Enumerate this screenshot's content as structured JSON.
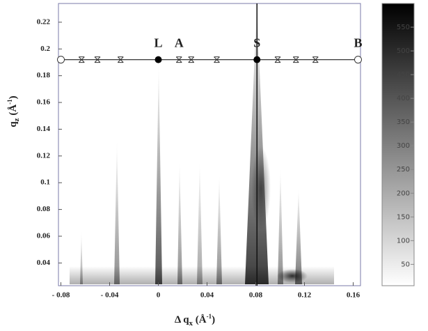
{
  "chart_data": {
    "type": "scatter",
    "xlabel": [
      "Δ q",
      "x",
      " (Å",
      "-1",
      ")"
    ],
    "ylabel": [
      "q",
      "z",
      " (Å",
      "-1",
      ")"
    ],
    "xlim": [
      -0.082,
      0.166
    ],
    "ylim": [
      0.023,
      0.234
    ],
    "xticks": [
      {
        "value": -0.08,
        "label": "- 0.08"
      },
      {
        "value": -0.04,
        "label": "- 0.04"
      },
      0,
      0.04,
      0.08,
      0.12,
      0.16
    ],
    "yticks": [
      0.04,
      0.06,
      0.08,
      0.1,
      0.12,
      0.14,
      0.16,
      0.18,
      0.2,
      0.22
    ],
    "hline": 0.192,
    "vline": 0.081,
    "series": [
      {
        "marker": "circle-open",
        "color": "#333333",
        "x": [
          -0.08,
          0.164
        ],
        "y": [
          0.192,
          0.192
        ]
      },
      {
        "marker": "cross",
        "color": "#333333",
        "x": [
          -0.063,
          -0.05,
          -0.031,
          0.017,
          0.027,
          0.048,
          0.098,
          0.113,
          0.129
        ],
        "y": [
          0.192,
          0.192,
          0.192,
          0.192,
          0.192,
          0.192,
          0.192,
          0.192,
          0.192
        ]
      },
      {
        "marker": "circle-filled",
        "color": "#000000",
        "x": [
          0,
          0.081
        ],
        "y": [
          0.192,
          0.192
        ]
      }
    ],
    "annotations": [
      {
        "text": "L",
        "x": 0
      },
      {
        "text": "A",
        "x": 0.017
      },
      {
        "text": "S",
        "x": 0.081
      },
      {
        "text": "B",
        "x": 0.164
      }
    ],
    "colorbar": {
      "lim": [
        5,
        600
      ],
      "ticks": [
        50,
        100,
        150,
        200,
        250,
        300,
        350,
        400,
        450,
        500,
        550
      ]
    }
  }
}
